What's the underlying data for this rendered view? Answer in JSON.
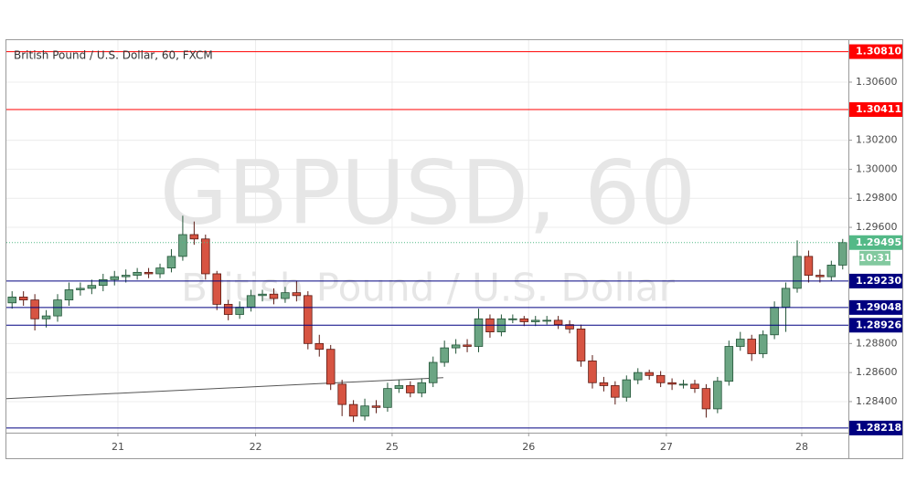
{
  "chart_data": {
    "type": "candlestick",
    "title": "British Pound / U.S. Dollar, 60, FXCM",
    "watermark": "GBPUSD, 60",
    "watermark_subtitle": "British Pound / U.S. Dollar",
    "up_color": "#6ba583",
    "down_color": "#d75442",
    "grid": true,
    "open": [
      1.2908,
      1.2912,
      1.291,
      1.2897,
      1.2899,
      1.291,
      1.2917,
      1.2918,
      1.292,
      1.2924,
      1.2926,
      1.2927,
      1.2929,
      1.2928,
      1.2932,
      1.294,
      1.2955,
      1.2952,
      1.2928,
      1.2907,
      1.29,
      1.2905,
      1.2913,
      1.2914,
      1.2911,
      1.2915,
      1.2913,
      1.288,
      1.2876,
      1.2852,
      1.2838,
      1.283,
      1.2837,
      1.2836,
      1.2849,
      1.2851,
      1.2846,
      1.2853,
      1.2867,
      1.2877,
      1.2879,
      1.2878,
      1.2897,
      1.2888,
      1.2897,
      1.2897,
      1.2895,
      1.2896,
      1.2896,
      1.2893,
      1.289,
      1.2868,
      1.2853,
      1.2851,
      1.2843,
      1.2855,
      1.286,
      1.2858,
      1.2853,
      1.2852,
      1.2852,
      1.2849,
      1.2835,
      1.2854,
      1.2878,
      1.2883,
      1.2873,
      1.2886,
      1.2905,
      1.2918,
      1.294,
      1.2927,
      1.2926,
      1.2934
    ],
    "high": [
      1.2916,
      1.2916,
      1.2914,
      1.2903,
      1.2914,
      1.2922,
      1.2922,
      1.2924,
      1.2928,
      1.293,
      1.2931,
      1.2932,
      1.2932,
      1.2935,
      1.2945,
      1.2968,
      1.2964,
      1.2955,
      1.293,
      1.291,
      1.2909,
      1.2917,
      1.2917,
      1.2918,
      1.2919,
      1.2923,
      1.2916,
      1.2886,
      1.2879,
      1.2855,
      1.2841,
      1.2842,
      1.2841,
      1.2853,
      1.2855,
      1.2854,
      1.2856,
      1.2871,
      1.2882,
      1.2883,
      1.2883,
      1.2904,
      1.29,
      1.29,
      1.29,
      1.2899,
      1.2899,
      1.2899,
      1.2899,
      1.2896,
      1.2893,
      1.2872,
      1.2857,
      1.2854,
      1.2858,
      1.2863,
      1.2862,
      1.2861,
      1.2856,
      1.2855,
      1.2855,
      1.2852,
      1.2857,
      1.2882,
      1.2888,
      1.2886,
      1.2889,
      1.2909,
      1.2922,
      1.2951,
      1.2944,
      1.2931,
      1.2937,
      1.2952
    ],
    "low": [
      1.2904,
      1.2906,
      1.2889,
      1.2891,
      1.2895,
      1.2906,
      1.2913,
      1.2914,
      1.2916,
      1.292,
      1.2922,
      1.2924,
      1.2925,
      1.2925,
      1.2929,
      1.2937,
      1.2948,
      1.2924,
      1.2903,
      1.2896,
      1.2897,
      1.2902,
      1.2909,
      1.2907,
      1.2908,
      1.2909,
      1.2876,
      1.2871,
      1.2848,
      1.283,
      1.2826,
      1.2827,
      1.2832,
      1.2833,
      1.2846,
      1.2843,
      1.2843,
      1.285,
      1.2864,
      1.2873,
      1.2874,
      1.2874,
      1.2884,
      1.2885,
      1.2894,
      1.2892,
      1.2892,
      1.2893,
      1.289,
      1.2887,
      1.2864,
      1.2849,
      1.2847,
      1.2838,
      1.284,
      1.2852,
      1.2855,
      1.285,
      1.2848,
      1.2849,
      1.2846,
      1.2829,
      1.2832,
      1.2851,
      1.2875,
      1.2868,
      1.287,
      1.2883,
      1.2888,
      1.2915,
      1.2922,
      1.2922,
      1.2923,
      1.2931
    ],
    "close": [
      1.2912,
      1.291,
      1.2897,
      1.2899,
      1.291,
      1.2917,
      1.2918,
      1.292,
      1.2924,
      1.2926,
      1.2927,
      1.2929,
      1.2928,
      1.2932,
      1.294,
      1.2955,
      1.2952,
      1.2928,
      1.2907,
      1.29,
      1.2905,
      1.2913,
      1.2914,
      1.2911,
      1.2915,
      1.2913,
      1.288,
      1.2876,
      1.2852,
      1.2838,
      1.283,
      1.2837,
      1.2836,
      1.2849,
      1.2851,
      1.2846,
      1.2853,
      1.2867,
      1.2877,
      1.2879,
      1.2878,
      1.2897,
      1.2888,
      1.2897,
      1.2897,
      1.2895,
      1.2896,
      1.2896,
      1.2893,
      1.289,
      1.2868,
      1.2853,
      1.2851,
      1.2843,
      1.2855,
      1.286,
      1.2858,
      1.2853,
      1.2852,
      1.2852,
      1.2849,
      1.2835,
      1.2854,
      1.2878,
      1.2883,
      1.2873,
      1.2886,
      1.2905,
      1.2918,
      1.294,
      1.2927,
      1.2926,
      1.2934,
      1.29495
    ],
    "xlim": [
      0,
      74
    ],
    "xticks": [
      {
        "value": 9.8,
        "label": "21"
      },
      {
        "value": 21.9,
        "label": "22"
      },
      {
        "value": 33.9,
        "label": "25"
      },
      {
        "value": 45.9,
        "label": "26"
      },
      {
        "value": 58.0,
        "label": "27"
      },
      {
        "value": 69.9,
        "label": "28"
      }
    ],
    "ylim": [
      1.28186,
      1.30889
    ],
    "yticks": [
      {
        "value": 1.306,
        "label": "1.30600"
      },
      {
        "value": 1.302,
        "label": "1.30200"
      },
      {
        "value": 1.3,
        "label": "1.30000"
      },
      {
        "value": 1.298,
        "label": "1.29800"
      },
      {
        "value": 1.296,
        "label": "1.29600"
      },
      {
        "value": 1.288,
        "label": "1.28800"
      },
      {
        "value": 1.286,
        "label": "1.28600"
      },
      {
        "value": 1.284,
        "label": "1.28400"
      }
    ],
    "levels": [
      {
        "value": 1.3081,
        "label": "1.30810",
        "color": "#ff0000"
      },
      {
        "value": 1.30411,
        "label": "1.30411",
        "color": "#ff0000"
      },
      {
        "value": 1.2923,
        "label": "1.29230",
        "color": "#000080"
      },
      {
        "value": 1.29048,
        "label": "1.29048",
        "color": "#000080"
      },
      {
        "value": 1.28926,
        "label": "1.28926",
        "color": "#000080"
      },
      {
        "value": 1.28218,
        "label": "1.28218",
        "color": "#000080"
      }
    ],
    "last_price": {
      "value": 1.29495,
      "label": "1.29495",
      "countdown": "10:31",
      "color": "#53b987"
    },
    "trendline": {
      "x": [
        0,
        38.4
      ],
      "y": [
        1.2842,
        1.28565
      ],
      "color": "#555555"
    }
  }
}
